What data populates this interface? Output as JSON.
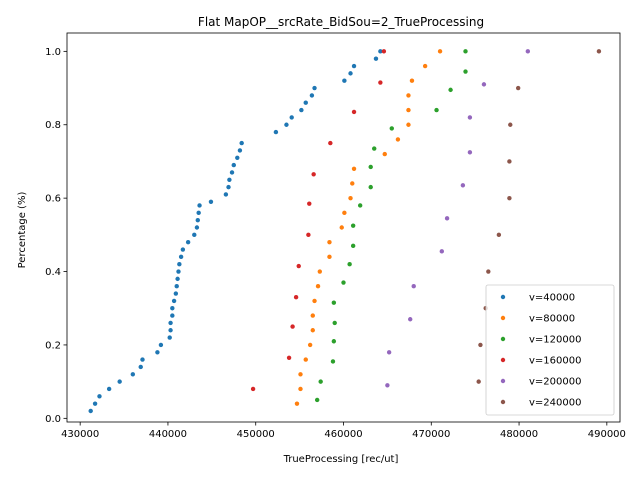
{
  "chart_data": {
    "type": "scatter",
    "title": "Flat MapOP__srcRate_BidSou=2_TrueProcessing",
    "xlabel": "TrueProcessing [rec/ut]",
    "ylabel": "Percentage (%)",
    "xlim": [
      428500,
      491500
    ],
    "ylim": [
      -0.01,
      1.05
    ],
    "xticks": [
      430000,
      440000,
      450000,
      460000,
      470000,
      480000,
      490000
    ],
    "yticks": [
      0.0,
      0.2,
      0.4,
      0.6,
      0.8,
      1.0
    ],
    "xtick_labels": [
      "430000",
      "440000",
      "450000",
      "460000",
      "470000",
      "480000",
      "490000"
    ],
    "ytick_labels": [
      "0.0",
      "0.2",
      "0.4",
      "0.6",
      "0.8",
      "1.0"
    ],
    "grid": false,
    "legend_position": "lower-right",
    "series": [
      {
        "name": "v=40000",
        "color": "#1f77b4",
        "points": [
          [
            431200,
            0.02
          ],
          [
            431700,
            0.04
          ],
          [
            432200,
            0.06
          ],
          [
            433300,
            0.08
          ],
          [
            434500,
            0.1
          ],
          [
            436000,
            0.12
          ],
          [
            436900,
            0.14
          ],
          [
            437100,
            0.16
          ],
          [
            438800,
            0.18
          ],
          [
            439200,
            0.2
          ],
          [
            440200,
            0.22
          ],
          [
            440300,
            0.24
          ],
          [
            440300,
            0.26
          ],
          [
            440500,
            0.28
          ],
          [
            440500,
            0.3
          ],
          [
            440700,
            0.32
          ],
          [
            440900,
            0.34
          ],
          [
            441000,
            0.36
          ],
          [
            441100,
            0.38
          ],
          [
            441200,
            0.4
          ],
          [
            441300,
            0.42
          ],
          [
            441500,
            0.44
          ],
          [
            441700,
            0.46
          ],
          [
            442300,
            0.48
          ],
          [
            443000,
            0.5
          ],
          [
            443300,
            0.52
          ],
          [
            443400,
            0.54
          ],
          [
            443500,
            0.56
          ],
          [
            443600,
            0.58
          ],
          [
            444900,
            0.59
          ],
          [
            446600,
            0.61
          ],
          [
            446900,
            0.63
          ],
          [
            447000,
            0.65
          ],
          [
            447300,
            0.67
          ],
          [
            447500,
            0.69
          ],
          [
            447900,
            0.71
          ],
          [
            448200,
            0.73
          ],
          [
            448400,
            0.75
          ],
          [
            452300,
            0.78
          ],
          [
            453500,
            0.8
          ],
          [
            454100,
            0.82
          ],
          [
            455200,
            0.84
          ],
          [
            455700,
            0.86
          ],
          [
            456400,
            0.88
          ],
          [
            456700,
            0.9
          ],
          [
            460100,
            0.92
          ],
          [
            460800,
            0.94
          ],
          [
            461200,
            0.96
          ],
          [
            463700,
            0.98
          ],
          [
            464200,
            1.0
          ]
        ]
      },
      {
        "name": "v=80000",
        "color": "#ff7f0e",
        "points": [
          [
            454700,
            0.04
          ],
          [
            455100,
            0.08
          ],
          [
            455100,
            0.12
          ],
          [
            455700,
            0.16
          ],
          [
            456200,
            0.2
          ],
          [
            456500,
            0.24
          ],
          [
            456500,
            0.28
          ],
          [
            456700,
            0.32
          ],
          [
            457100,
            0.36
          ],
          [
            457300,
            0.4
          ],
          [
            458400,
            0.44
          ],
          [
            458400,
            0.48
          ],
          [
            459800,
            0.52
          ],
          [
            460100,
            0.56
          ],
          [
            460800,
            0.6
          ],
          [
            461000,
            0.64
          ],
          [
            461200,
            0.68
          ],
          [
            464700,
            0.72
          ],
          [
            466200,
            0.76
          ],
          [
            467400,
            0.8
          ],
          [
            467400,
            0.84
          ],
          [
            467400,
            0.88
          ],
          [
            467800,
            0.92
          ],
          [
            469300,
            0.96
          ],
          [
            471000,
            1.0
          ]
        ]
      },
      {
        "name": "v=120000",
        "color": "#2ca02c",
        "points": [
          [
            457000,
            0.05
          ],
          [
            457400,
            0.1
          ],
          [
            458800,
            0.155
          ],
          [
            458900,
            0.21
          ],
          [
            459000,
            0.26
          ],
          [
            458900,
            0.315
          ],
          [
            460000,
            0.37
          ],
          [
            460700,
            0.42
          ],
          [
            461100,
            0.47
          ],
          [
            461100,
            0.525
          ],
          [
            461900,
            0.58
          ],
          [
            463100,
            0.63
          ],
          [
            463100,
            0.685
          ],
          [
            463500,
            0.735
          ],
          [
            465500,
            0.79
          ],
          [
            470600,
            0.84
          ],
          [
            472200,
            0.895
          ],
          [
            473900,
            0.945
          ],
          [
            473900,
            1.0
          ]
        ]
      },
      {
        "name": "v=160000",
        "color": "#d62728",
        "points": [
          [
            449700,
            0.08
          ],
          [
            453800,
            0.165
          ],
          [
            454200,
            0.25
          ],
          [
            454600,
            0.33
          ],
          [
            454900,
            0.415
          ],
          [
            456000,
            0.5
          ],
          [
            456100,
            0.585
          ],
          [
            456600,
            0.665
          ],
          [
            458500,
            0.75
          ],
          [
            461200,
            0.835
          ],
          [
            464200,
            0.915
          ],
          [
            464600,
            1.0
          ]
        ]
      },
      {
        "name": "v=200000",
        "color": "#9467bd",
        "points": [
          [
            465000,
            0.09
          ],
          [
            465200,
            0.18
          ],
          [
            467600,
            0.27
          ],
          [
            468000,
            0.36
          ],
          [
            471200,
            0.455
          ],
          [
            471800,
            0.545
          ],
          [
            473600,
            0.635
          ],
          [
            474400,
            0.725
          ],
          [
            474400,
            0.82
          ],
          [
            476000,
            0.91
          ],
          [
            481000,
            1.0
          ]
        ]
      },
      {
        "name": "v=240000",
        "color": "#8c564b",
        "points": [
          [
            475400,
            0.1
          ],
          [
            475600,
            0.2
          ],
          [
            476200,
            0.3
          ],
          [
            476500,
            0.4
          ],
          [
            477700,
            0.5
          ],
          [
            478900,
            0.6
          ],
          [
            478900,
            0.7
          ],
          [
            479000,
            0.8
          ],
          [
            479900,
            0.9
          ],
          [
            489100,
            1.0
          ]
        ]
      }
    ]
  }
}
